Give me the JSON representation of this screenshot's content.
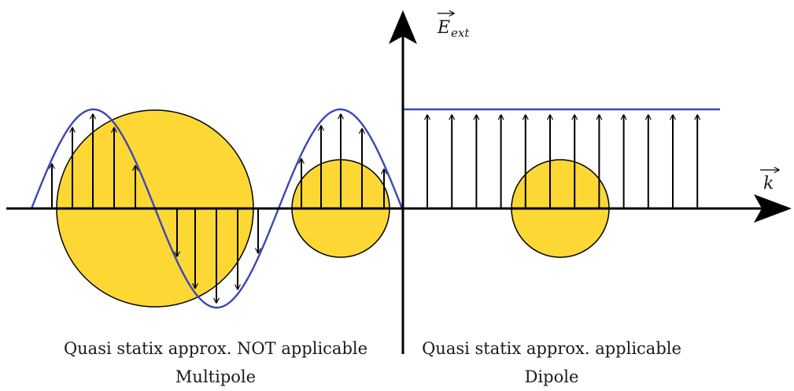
{
  "axis_labels": {
    "field_symbol": "E",
    "field_subscript": "ext",
    "wavevector_symbol": "k"
  },
  "captions": {
    "left_line1": "Quasi statix approx. NOT applicable",
    "left_line2": "Multipole",
    "right_line1": "Quasi statix approx. applicable",
    "right_line2": "Dipole"
  },
  "colors": {
    "particle_fill": "#FDD835",
    "wave_line": "#3B48B5",
    "axis": "#000000",
    "arrow": "#000000"
  },
  "icons": [
    "arrow-up-icon",
    "arrow-down-icon",
    "axis-arrowhead-icon"
  ]
}
